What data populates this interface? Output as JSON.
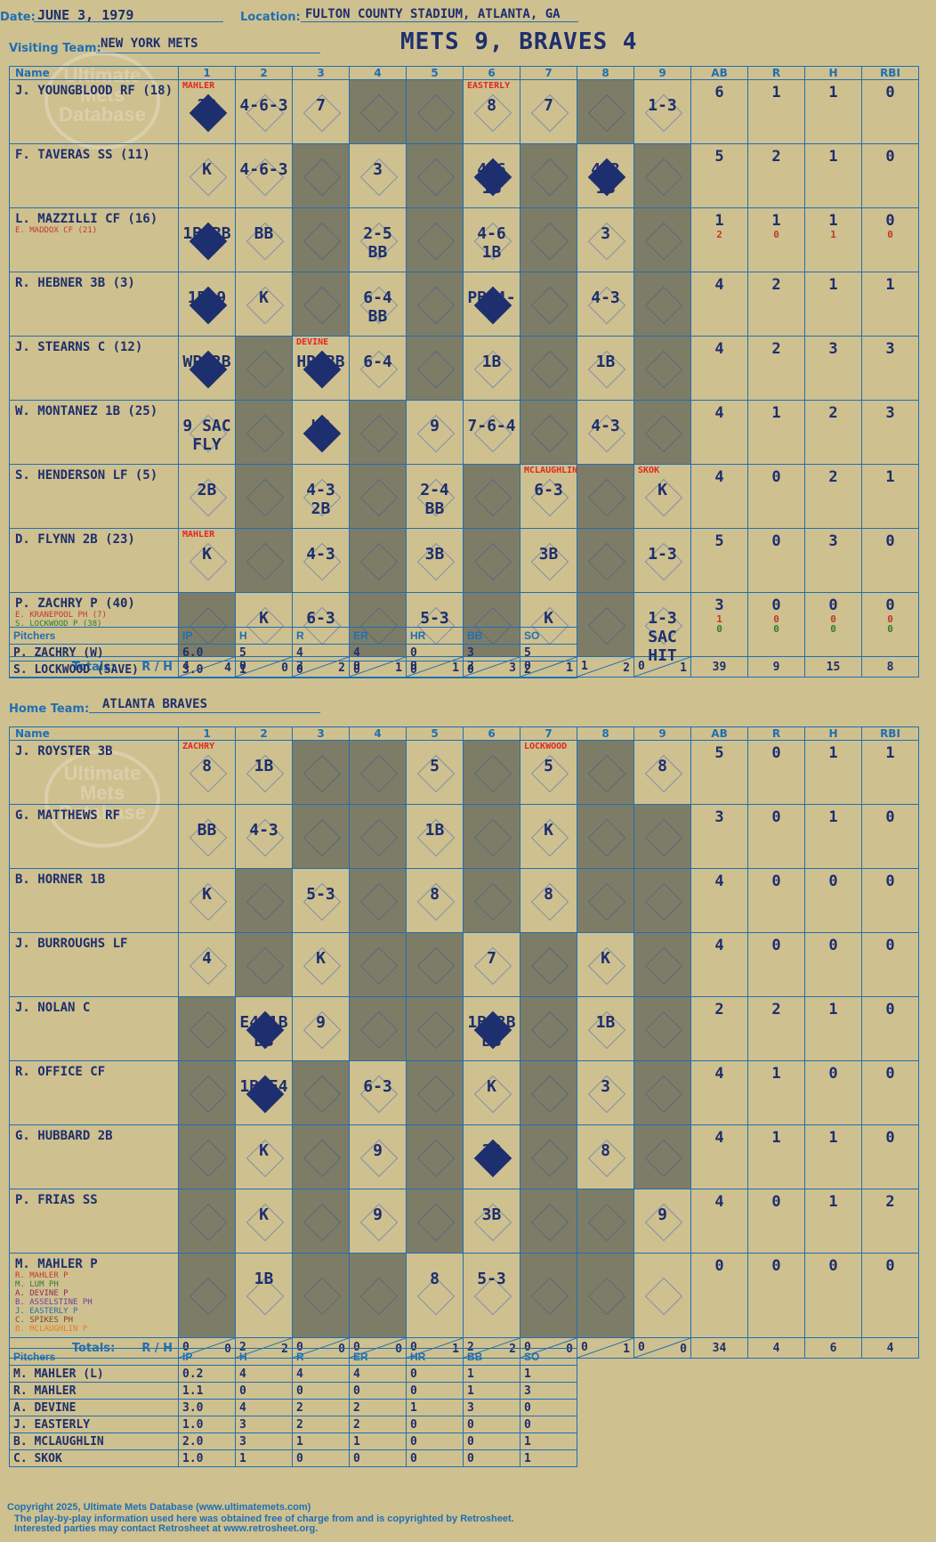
{
  "header": {
    "date_label": "Date:",
    "date": "JUNE 3, 1979",
    "location_label": "Location:",
    "location": "FULTON COUNTY STADIUM, ATLANTA, GA",
    "visiting_label": "Visiting Team:",
    "visiting_team": "NEW YORK METS",
    "home_label": "Home Team:",
    "home_team": "ATLANTA BRAVES",
    "game_result": "METS 9, BRAVES 4"
  },
  "watermark": {
    "line1": "Ultimate",
    "line2": "Mets",
    "line3": "Database"
  },
  "columns": {
    "name": "Name",
    "innings": [
      "1",
      "2",
      "3",
      "4",
      "5",
      "6",
      "7",
      "8",
      "9"
    ],
    "stats": [
      "AB",
      "R",
      "H",
      "RBI"
    ]
  },
  "totals_label": "Totals:",
  "rh_r": "R",
  "rh_h": "H",
  "visitors": {
    "rows": [
      {
        "name": "J. YOUNGBLOOD RF (18)",
        "subs": [],
        "cells": [
          {
            "p": "2B",
            "n": "MAHLER",
            "s": true
          },
          {
            "p": "4-6-3"
          },
          {
            "p": "7"
          },
          {
            "p": ""
          },
          {
            "p": ""
          },
          {
            "p": "8",
            "n": "EASTERLY"
          },
          {
            "p": "7"
          },
          {
            "p": ""
          },
          {
            "p": "1-3"
          }
        ],
        "stats": [
          "6",
          "1",
          "1",
          "0"
        ]
      },
      {
        "name": "F. TAVERAS SS (11)",
        "subs": [],
        "cells": [
          {
            "p": "K"
          },
          {
            "p": "4-6-3"
          },
          {
            "p": ""
          },
          {
            "p": "3"
          },
          {
            "p": ""
          },
          {
            "p": "4-6 1B",
            "s": true
          },
          {
            "p": ""
          },
          {
            "p": "4-3 1B",
            "s": true
          },
          {
            "p": ""
          }
        ],
        "stats": [
          "5",
          "2",
          "1",
          "0"
        ]
      },
      {
        "name": "L. MAZZILLI CF (16)",
        "subs": [
          "E. MADDOX CF (21)"
        ],
        "cells": [
          {
            "p": "1B BB",
            "s": true
          },
          {
            "p": "BB"
          },
          {
            "p": ""
          },
          {
            "p": "2-5 BB"
          },
          {
            "p": ""
          },
          {
            "p": "4-6 1B"
          },
          {
            "p": ""
          },
          {
            "p": "3"
          },
          {
            "p": ""
          }
        ],
        "stats": [
          "1",
          "1",
          "1",
          "0"
        ],
        "alt_stats": [
          "2",
          "0",
          "1",
          "0"
        ]
      },
      {
        "name": "R. HEBNER 3B (3)",
        "subs": [],
        "cells": [
          {
            "p": "1B 9",
            "s": true
          },
          {
            "p": "K"
          },
          {
            "p": ""
          },
          {
            "p": "6-4 BB"
          },
          {
            "p": ""
          },
          {
            "p": "PB 4-6",
            "s": true
          },
          {
            "p": ""
          },
          {
            "p": "4-3"
          },
          {
            "p": ""
          }
        ],
        "stats": [
          "4",
          "2",
          "1",
          "1"
        ]
      },
      {
        "name": "J. STEARNS C (12)",
        "subs": [],
        "cells": [
          {
            "p": "WP 2B",
            "s": true
          },
          {
            "p": ""
          },
          {
            "p": "HR BB",
            "n": "DEVINE",
            "s": true
          },
          {
            "p": "6-4"
          },
          {
            "p": ""
          },
          {
            "p": "1B"
          },
          {
            "p": ""
          },
          {
            "p": "1B"
          },
          {
            "p": ""
          }
        ],
        "stats": [
          "4",
          "2",
          "3",
          "3"
        ]
      },
      {
        "name": "W. MONTANEZ 1B (25)",
        "subs": [],
        "cells": [
          {
            "p": "9 SAC FLY"
          },
          {
            "p": ""
          },
          {
            "p": "HR",
            "s": true
          },
          {
            "p": ""
          },
          {
            "p": "9"
          },
          {
            "p": "7-6-4"
          },
          {
            "p": ""
          },
          {
            "p": "4-3"
          },
          {
            "p": ""
          }
        ],
        "stats": [
          "4",
          "1",
          "2",
          "3"
        ]
      },
      {
        "name": "S. HENDERSON LF (5)",
        "subs": [],
        "cells": [
          {
            "p": "2B"
          },
          {
            "p": ""
          },
          {
            "p": "4-3 2B"
          },
          {
            "p": ""
          },
          {
            "p": "2-4 BB"
          },
          {
            "p": ""
          },
          {
            "p": "6-3",
            "n": "MCLAUGHLIN"
          },
          {
            "p": ""
          },
          {
            "p": "K",
            "n": "SKOK"
          }
        ],
        "stats": [
          "4",
          "0",
          "2",
          "1"
        ]
      },
      {
        "name": "D. FLYNN 2B (23)",
        "subs": [],
        "cells": [
          {
            "p": "K",
            "n": "MAHLER"
          },
          {
            "p": ""
          },
          {
            "p": "4-3"
          },
          {
            "p": ""
          },
          {
            "p": "3B"
          },
          {
            "p": ""
          },
          {
            "p": "3B"
          },
          {
            "p": ""
          },
          {
            "p": "1-3"
          }
        ],
        "stats": [
          "5",
          "0",
          "3",
          "0"
        ]
      },
      {
        "name": "P. ZACHRY P (40)",
        "subs": [
          "E. KRANEPOOL PH (7)",
          "S. LOCKWOOD P (38)"
        ],
        "cells": [
          {
            "p": ""
          },
          {
            "p": "K"
          },
          {
            "p": "6-3"
          },
          {
            "p": ""
          },
          {
            "p": "5-3"
          },
          {
            "p": ""
          },
          {
            "p": "K"
          },
          {
            "p": ""
          },
          {
            "p": "1-3 SAC HIT"
          }
        ],
        "stats": [
          "3",
          "0",
          "0",
          "0"
        ],
        "alt_stats": [
          "1",
          "0",
          "0",
          "0"
        ],
        "alt_stats2": [
          "0",
          "0",
          "0",
          "0"
        ]
      }
    ],
    "totals": [
      [
        "4",
        "4"
      ],
      [
        "0",
        "0"
      ],
      [
        "2",
        "2"
      ],
      [
        "0",
        "1"
      ],
      [
        "0",
        "1"
      ],
      [
        "2",
        "3"
      ],
      [
        "0",
        "1"
      ],
      [
        "1",
        "2"
      ],
      [
        "0",
        "1"
      ]
    ],
    "totals_stats": [
      "39",
      "9",
      "15",
      "8"
    ],
    "shade": [
      [
        0,
        0,
        0,
        1,
        1,
        0,
        0,
        1,
        0
      ],
      [
        0,
        0,
        1,
        0,
        1,
        0,
        1,
        0,
        1
      ],
      [
        0,
        0,
        1,
        0,
        1,
        0,
        1,
        0,
        1
      ],
      [
        0,
        0,
        1,
        0,
        1,
        0,
        1,
        0,
        1
      ],
      [
        0,
        1,
        0,
        0,
        1,
        0,
        1,
        0,
        1
      ],
      [
        0,
        1,
        0,
        1,
        0,
        0,
        1,
        0,
        1
      ],
      [
        0,
        1,
        0,
        1,
        0,
        1,
        0,
        1,
        0
      ],
      [
        0,
        1,
        0,
        1,
        0,
        1,
        0,
        1,
        0
      ],
      [
        1,
        0,
        0,
        1,
        0,
        1,
        0,
        1,
        0
      ]
    ],
    "pitchers_header": [
      "Pitchers",
      "IP",
      "H",
      "R",
      "ER",
      "HR",
      "BB",
      "SO"
    ],
    "pitchers": [
      [
        "P. ZACHRY (W)",
        "6.0",
        "5",
        "4",
        "4",
        "0",
        "3",
        "5"
      ],
      [
        "S. LOCKWOOD (SAVE)",
        "3.0",
        "1",
        "0",
        "0",
        "0",
        "0",
        "2"
      ]
    ]
  },
  "home": {
    "rows": [
      {
        "name": "J. ROYSTER 3B",
        "subs": [],
        "cells": [
          {
            "p": "8",
            "n": "ZACHRY"
          },
          {
            "p": "1B"
          },
          {
            "p": ""
          },
          {
            "p": ""
          },
          {
            "p": "5"
          },
          {
            "p": ""
          },
          {
            "p": "5",
            "n": "LOCKWOOD"
          },
          {
            "p": ""
          },
          {
            "p": "8"
          }
        ],
        "stats": [
          "5",
          "0",
          "1",
          "1"
        ]
      },
      {
        "name": "G. MATTHEWS RF",
        "subs": [],
        "cells": [
          {
            "p": "BB"
          },
          {
            "p": "4-3"
          },
          {
            "p": ""
          },
          {
            "p": ""
          },
          {
            "p": "1B"
          },
          {
            "p": ""
          },
          {
            "p": "K"
          },
          {
            "p": ""
          },
          {
            "p": ""
          }
        ],
        "stats": [
          "3",
          "0",
          "1",
          "0"
        ]
      },
      {
        "name": "B. HORNER 1B",
        "subs": [],
        "cells": [
          {
            "p": "K"
          },
          {
            "p": ""
          },
          {
            "p": "5-3"
          },
          {
            "p": ""
          },
          {
            "p": "8"
          },
          {
            "p": ""
          },
          {
            "p": "8"
          },
          {
            "p": ""
          },
          {
            "p": ""
          }
        ],
        "stats": [
          "4",
          "0",
          "0",
          "0"
        ]
      },
      {
        "name": "J. BURROUGHS LF",
        "subs": [],
        "cells": [
          {
            "p": "4"
          },
          {
            "p": ""
          },
          {
            "p": "K"
          },
          {
            "p": ""
          },
          {
            "p": ""
          },
          {
            "p": "7"
          },
          {
            "p": ""
          },
          {
            "p": "K"
          },
          {
            "p": ""
          }
        ],
        "stats": [
          "4",
          "0",
          "0",
          "0"
        ]
      },
      {
        "name": "J. NOLAN C",
        "subs": [],
        "cells": [
          {
            "p": ""
          },
          {
            "p": "E4 1B BB",
            "s": true
          },
          {
            "p": "9"
          },
          {
            "p": ""
          },
          {
            "p": ""
          },
          {
            "p": "1B 3B BB",
            "s": true
          },
          {
            "p": ""
          },
          {
            "p": "1B"
          },
          {
            "p": ""
          }
        ],
        "stats": [
          "2",
          "2",
          "1",
          "0"
        ]
      },
      {
        "name": "R. OFFICE CF",
        "subs": [],
        "cells": [
          {
            "p": ""
          },
          {
            "p": "1B E4",
            "s": true
          },
          {
            "p": ""
          },
          {
            "p": "6-3"
          },
          {
            "p": ""
          },
          {
            "p": "K"
          },
          {
            "p": ""
          },
          {
            "p": "3"
          },
          {
            "p": ""
          }
        ],
        "stats": [
          "4",
          "1",
          "0",
          "0"
        ]
      },
      {
        "name": "G. HUBBARD 2B",
        "subs": [],
        "cells": [
          {
            "p": ""
          },
          {
            "p": "K"
          },
          {
            "p": ""
          },
          {
            "p": "9"
          },
          {
            "p": ""
          },
          {
            "p": "3B",
            "s": true
          },
          {
            "p": ""
          },
          {
            "p": "8"
          },
          {
            "p": ""
          }
        ],
        "stats": [
          "4",
          "1",
          "1",
          "0"
        ]
      },
      {
        "name": "P. FRIAS SS",
        "subs": [],
        "cells": [
          {
            "p": ""
          },
          {
            "p": "K"
          },
          {
            "p": ""
          },
          {
            "p": "9"
          },
          {
            "p": ""
          },
          {
            "p": "3B"
          },
          {
            "p": ""
          },
          {
            "p": ""
          },
          {
            "p": "9"
          }
        ],
        "stats": [
          "4",
          "0",
          "1",
          "2"
        ]
      },
      {
        "name": "M. MAHLER P",
        "subs": [
          "R. MAHLER P",
          "M. LUM PH",
          "A. DEVINE P",
          "B. ASSELSTINE PH",
          "J. EASTERLY P",
          "C. SPIKES PH",
          "B. MCLAUGHLIN P"
        ],
        "cells": [
          {
            "p": ""
          },
          {
            "p": "1B"
          },
          {
            "p": ""
          },
          {
            "p": ""
          },
          {
            "p": "8"
          },
          {
            "p": "5-3"
          },
          {
            "p": ""
          },
          {
            "p": ""
          },
          {
            "p": ""
          }
        ],
        "stats": [
          "0",
          "0",
          "0",
          "0"
        ]
      }
    ],
    "totals": [
      [
        "0",
        "0"
      ],
      [
        "2",
        "2"
      ],
      [
        "0",
        "0"
      ],
      [
        "0",
        "0"
      ],
      [
        "0",
        "1"
      ],
      [
        "2",
        "2"
      ],
      [
        "0",
        "0"
      ],
      [
        "0",
        "1"
      ],
      [
        "0",
        "0"
      ]
    ],
    "totals_stats": [
      "34",
      "4",
      "6",
      "4"
    ],
    "shade": [
      [
        0,
        0,
        1,
        1,
        0,
        1,
        0,
        1,
        0
      ],
      [
        0,
        0,
        1,
        1,
        0,
        1,
        0,
        1,
        1
      ],
      [
        0,
        1,
        0,
        1,
        0,
        1,
        0,
        1,
        1
      ],
      [
        0,
        1,
        0,
        1,
        1,
        0,
        1,
        0,
        1
      ],
      [
        1,
        0,
        0,
        1,
        1,
        0,
        1,
        0,
        1
      ],
      [
        1,
        0,
        1,
        0,
        1,
        0,
        1,
        0,
        1
      ],
      [
        1,
        0,
        1,
        0,
        1,
        0,
        1,
        0,
        1
      ],
      [
        1,
        0,
        1,
        0,
        1,
        0,
        1,
        1,
        0
      ],
      [
        1,
        0,
        1,
        1,
        0,
        0,
        1,
        1,
        0
      ]
    ],
    "pitchers_header": [
      "Pitchers",
      "IP",
      "H",
      "R",
      "ER",
      "HR",
      "BB",
      "SO"
    ],
    "pitchers": [
      [
        "M. MAHLER (L)",
        "0.2",
        "4",
        "4",
        "4",
        "0",
        "1",
        "1"
      ],
      [
        "R. MAHLER",
        "1.1",
        "0",
        "0",
        "0",
        "0",
        "1",
        "3"
      ],
      [
        "A. DEVINE",
        "3.0",
        "4",
        "2",
        "2",
        "1",
        "3",
        "0"
      ],
      [
        "J. EASTERLY",
        "1.0",
        "3",
        "2",
        "2",
        "0",
        "0",
        "0"
      ],
      [
        "B. MCLAUGHLIN",
        "2.0",
        "3",
        "1",
        "1",
        "0",
        "0",
        "1"
      ],
      [
        "C. SKOK",
        "1.0",
        "1",
        "0",
        "0",
        "0",
        "0",
        "1"
      ]
    ]
  },
  "footer": {
    "line1": "Copyright 2025, Ultimate Mets Database (www.ultimatemets.com)",
    "line2": "The play-by-play information used here was obtained free of charge from and is copyrighted by Retrosheet.",
    "line3": "Interested parties may contact Retrosheet at www.retrosheet.org."
  },
  "colors": {
    "ink": "#1d2f6e",
    "grid": "#1f6fb3",
    "shade": "#7d7c67",
    "paper": "#cfc08f",
    "note": "#e0281f",
    "scored": "#1d2f6e"
  }
}
